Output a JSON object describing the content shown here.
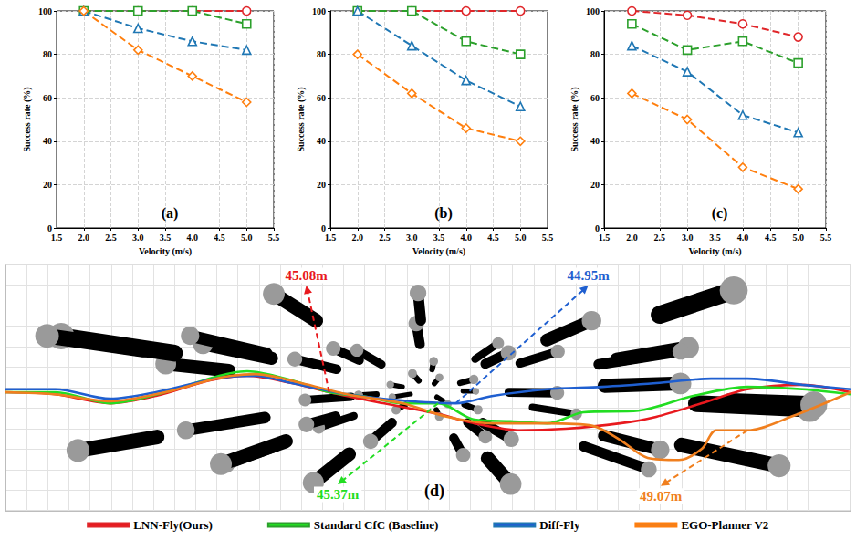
{
  "chart_data": [
    {
      "type": "line",
      "title": "(a)",
      "xlabel": "Velocity (m/s)",
      "ylabel": "Success rate (%)",
      "x": [
        2,
        3,
        4,
        5
      ],
      "xlim": [
        1.5,
        5.5
      ],
      "xticks": [
        1.5,
        {
          "value": 2,
          "label": "2.0"
        },
        2.5,
        {
          "value": 3,
          "label": "3.0"
        },
        3.5,
        {
          "value": 4,
          "label": "4.0"
        },
        4.5,
        {
          "value": 5,
          "label": "5.0"
        },
        5.5
      ],
      "ylim": [
        0,
        100
      ],
      "yticks": [
        0,
        20,
        40,
        60,
        80,
        100
      ],
      "grid": true,
      "series": [
        {
          "name": "LNN-Fly(Ours)",
          "color": "#e0262a",
          "marker": "circle",
          "line_style": "dashed",
          "values": [
            100,
            100,
            100,
            100
          ]
        },
        {
          "name": "Standard CfC (Baseline)",
          "color": "#2ca02c",
          "marker": "square",
          "line_style": "dashed",
          "values": [
            100,
            100,
            100,
            94
          ]
        },
        {
          "name": "Diff-Fly",
          "color": "#1f77b4",
          "marker": "triangle",
          "line_style": "dashed",
          "values": [
            100,
            92,
            86,
            82
          ]
        },
        {
          "name": "EGO-Planner V2",
          "color": "#ff7f0e",
          "marker": "diamond",
          "line_style": "dashed",
          "values": [
            100,
            82,
            70,
            58
          ]
        }
      ]
    },
    {
      "type": "line",
      "title": "(b)",
      "xlabel": "Velocity (m/s)",
      "ylabel": "Success rate (%)",
      "x": [
        2,
        3,
        4,
        5
      ],
      "xlim": [
        1.5,
        5.5
      ],
      "xticks": [
        1.5,
        {
          "value": 2,
          "label": "2.0"
        },
        2.5,
        {
          "value": 3,
          "label": "3.0"
        },
        3.5,
        {
          "value": 4,
          "label": "4.0"
        },
        4.5,
        {
          "value": 5,
          "label": "5.0"
        },
        5.5
      ],
      "ylim": [
        0,
        100
      ],
      "yticks": [
        0,
        20,
        40,
        60,
        80,
        100
      ],
      "grid": true,
      "series": [
        {
          "name": "LNN-Fly(Ours)",
          "color": "#e0262a",
          "marker": "circle",
          "line_style": "dashed",
          "values": [
            100,
            100,
            100,
            100
          ]
        },
        {
          "name": "Standard CfC (Baseline)",
          "color": "#2ca02c",
          "marker": "square",
          "line_style": "dashed",
          "values": [
            100,
            100,
            86,
            80
          ]
        },
        {
          "name": "Diff-Fly",
          "color": "#1f77b4",
          "marker": "triangle",
          "line_style": "dashed",
          "values": [
            100,
            84,
            68,
            56
          ]
        },
        {
          "name": "EGO-Planner V2",
          "color": "#ff7f0e",
          "marker": "diamond",
          "line_style": "dashed",
          "values": [
            80,
            62,
            46,
            40
          ]
        }
      ]
    },
    {
      "type": "line",
      "title": "(c)",
      "xlabel": "Velocity (m/s)",
      "ylabel": "Success rate (%)",
      "x": [
        2,
        3,
        4,
        5
      ],
      "xlim": [
        1.5,
        5.5
      ],
      "xticks": [
        1.5,
        {
          "value": 2,
          "label": "2.0"
        },
        2.5,
        {
          "value": 3,
          "label": "3.0"
        },
        3.5,
        {
          "value": 4,
          "label": "4.0"
        },
        4.5,
        {
          "value": 5,
          "label": "5.0"
        },
        5.5
      ],
      "ylim": [
        0,
        100
      ],
      "yticks": [
        0,
        20,
        40,
        60,
        80,
        100
      ],
      "grid": true,
      "series": [
        {
          "name": "LNN-Fly(Ours)",
          "color": "#e0262a",
          "marker": "circle",
          "line_style": "dashed",
          "values": [
            100,
            98,
            94,
            88
          ]
        },
        {
          "name": "Standard CfC (Baseline)",
          "color": "#2ca02c",
          "marker": "square",
          "line_style": "dashed",
          "values": [
            94,
            82,
            86,
            76
          ]
        },
        {
          "name": "Diff-Fly",
          "color": "#1f77b4",
          "marker": "triangle",
          "line_style": "dashed",
          "values": [
            84,
            72,
            52,
            44
          ]
        },
        {
          "name": "EGO-Planner V2",
          "color": "#ff7f0e",
          "marker": "diamond",
          "line_style": "dashed",
          "values": [
            62,
            50,
            28,
            18
          ]
        }
      ]
    },
    {
      "type": "trajectory",
      "title": "(d)",
      "tick_labels": false,
      "grid": true,
      "legend": "bottom",
      "xlim": [
        0,
        100
      ],
      "xticks": [
        0,
        2.5,
        5,
        7.5,
        10,
        12.5,
        15,
        17.5,
        20,
        22.5,
        25,
        27.5,
        30,
        32.5,
        35,
        37.5,
        40,
        42.5,
        45,
        47.5,
        50,
        52.5,
        55,
        57.5,
        60,
        62.5,
        65,
        67.5,
        70,
        72.5,
        75,
        77.5,
        80,
        82.5,
        85,
        87.5,
        90,
        92.5,
        95,
        97.5,
        100
      ],
      "ylim": [
        0,
        60
      ],
      "yticks": [
        0,
        5,
        10,
        15,
        20,
        25,
        30,
        35,
        40,
        45,
        50,
        55,
        60
      ],
      "series": [
        {
          "name": "LNN-Fly(Ours)",
          "color": "#e8191e",
          "marker": "none",
          "line_style": "solid",
          "annotation": "45.08m",
          "x": [
            0,
            5.9,
            12.4,
            17.8,
            24.2,
            28.6,
            33.9,
            38.3,
            44.7,
            51.2,
            55.5,
            60.9,
            66.3,
            72.7,
            77.0,
            82.4,
            87.8,
            94.3,
            100
          ],
          "values": [
            28.9,
            28.4,
            26.2,
            28.0,
            31.8,
            32.9,
            31.1,
            28.9,
            26.2,
            23.6,
            21.3,
            19.6,
            20.0,
            21.3,
            22.9,
            26.2,
            29.6,
            30.7,
            28.9
          ]
        },
        {
          "name": "Standard CfC (Baseline)",
          "color": "#22dd22",
          "marker": "none",
          "line_style": "solid",
          "annotation": "45.37m",
          "x": [
            0,
            5.9,
            12.4,
            18.9,
            25.3,
            28.6,
            33.9,
            38.3,
            42.6,
            47.0,
            51.2,
            55.5,
            59.8,
            64.1,
            68.4,
            74.9,
            81.4,
            87.8,
            94.3,
            100
          ],
          "values": [
            28.9,
            28.9,
            26.2,
            28.9,
            32.9,
            34.0,
            31.8,
            28.9,
            27.8,
            26.2,
            26.2,
            22.2,
            21.8,
            21.3,
            24.0,
            24.4,
            28.0,
            30.2,
            29.6,
            28.4
          ]
        },
        {
          "name": "Diff-Fly",
          "color": "#1f5fd0",
          "marker": "none",
          "line_style": "solid",
          "annotation": "44.95m",
          "x": [
            0,
            5.9,
            12.4,
            17.8,
            25.3,
            29.6,
            33.9,
            40.4,
            46.9,
            53.3,
            57.7,
            64.1,
            70.6,
            77.0,
            83.5,
            87.8,
            94.3,
            100
          ],
          "values": [
            29.6,
            29.6,
            27.3,
            28.9,
            32.4,
            32.9,
            31.1,
            28.4,
            26.9,
            26.2,
            28.0,
            29.6,
            30.2,
            31.1,
            32.2,
            32.2,
            30.7,
            29.6
          ]
        },
        {
          "name": "EGO-Planner V2",
          "color": "#f07f1e",
          "marker": "none",
          "line_style": "solid",
          "annotation": "49.07m",
          "x": [
            0,
            5.9,
            12.4,
            18.9,
            25.3,
            29.6,
            35.0,
            40.4,
            46.9,
            52.3,
            57.7,
            64.1,
            69.5,
            72.7,
            76.0,
            79.7,
            82.4,
            84.1,
            87.8,
            93.2,
            100
          ],
          "values": [
            28.9,
            28.4,
            26.7,
            28.9,
            32.4,
            33.3,
            31.1,
            28.4,
            26.2,
            22.9,
            21.3,
            21.3,
            20.7,
            17.3,
            12.9,
            12.4,
            15.1,
            19.6,
            19.6,
            23.1,
            28.9
          ]
        }
      ]
    }
  ]
}
